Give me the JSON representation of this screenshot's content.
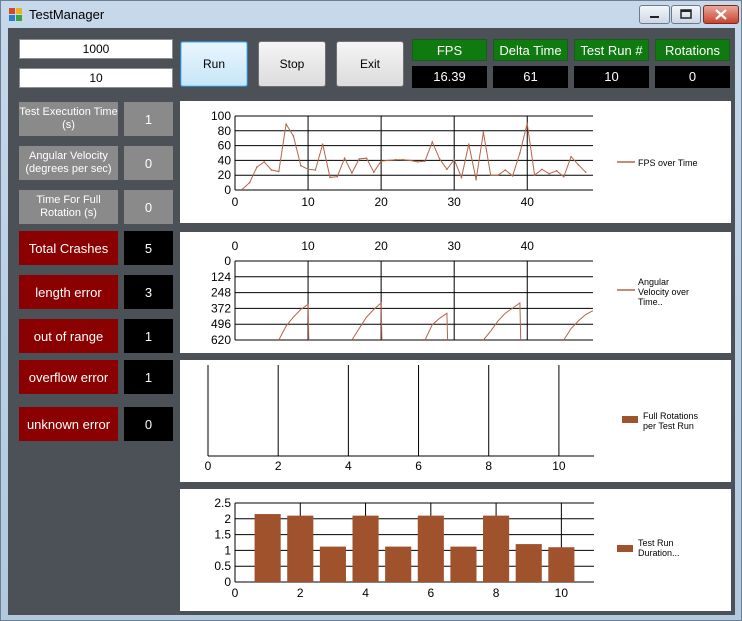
{
  "window": {
    "title": "TestManager"
  },
  "inputs": {
    "top_value": "1000",
    "bottom_value": "10"
  },
  "buttons": {
    "run": "Run",
    "stop": "Stop",
    "exit": "Exit"
  },
  "stats": [
    {
      "label": "FPS",
      "value": "16.39"
    },
    {
      "label": "Delta Time",
      "value": "61"
    },
    {
      "label": "Test Run #",
      "value": "10"
    },
    {
      "label": "Rotations",
      "value": "0"
    }
  ],
  "info": [
    {
      "label": "Test Execution Time (s)",
      "value": "1"
    },
    {
      "label": "Angular Velocity (degrees per sec)",
      "value": "0"
    },
    {
      "label": "Time For Full Rotation (s)",
      "value": "0"
    }
  ],
  "errors": [
    {
      "label": "Total Crashes",
      "value": "5"
    },
    {
      "label": "length error",
      "value": "3"
    },
    {
      "label": "out of range",
      "value": "1"
    },
    {
      "label": "overflow error",
      "value": "1"
    },
    {
      "label": "unknown error",
      "value": "0"
    }
  ],
  "colors": {
    "series_line": "#b5654a",
    "bar": "#a0522d",
    "stat_green": "#0f7a0f",
    "error_red": "#8b0000"
  },
  "chart_data": [
    {
      "type": "line",
      "xlim": [
        0,
        49
      ],
      "ylim": [
        0,
        100
      ],
      "xticks": [
        0,
        10,
        20,
        30,
        40
      ],
      "yticks": [
        0,
        20,
        40,
        60,
        80,
        100
      ],
      "series": [
        {
          "name": "FPS over Time",
          "x": [
            1,
            2,
            3,
            4,
            5,
            6,
            7,
            8,
            9,
            10,
            11,
            12,
            13,
            14,
            15,
            16,
            17,
            18,
            19,
            20,
            21,
            22,
            23,
            24,
            25,
            26,
            27,
            28,
            29,
            30,
            31,
            32,
            33,
            34,
            35,
            36,
            37,
            38,
            39,
            40,
            41,
            42,
            43,
            44,
            45,
            46,
            47,
            48
          ],
          "y": [
            1,
            10,
            31,
            38,
            27,
            25,
            89,
            73,
            33,
            28,
            27,
            62,
            17,
            18,
            43,
            23,
            42,
            43,
            24,
            39,
            40,
            41,
            41,
            40,
            38,
            39,
            65,
            42,
            28,
            41,
            17,
            62,
            14,
            78,
            20,
            20,
            27,
            19,
            50,
            90,
            20,
            28,
            22,
            26,
            18,
            45,
            34,
            24
          ]
        }
      ]
    },
    {
      "type": "line",
      "xlim": [
        0,
        49
      ],
      "ylim": [
        620,
        0
      ],
      "xticks": [
        0,
        10,
        20,
        30,
        40
      ],
      "yticks": [
        0,
        124,
        248,
        372,
        496,
        620
      ],
      "series": [
        {
          "name": "Angular Velocity over Time..",
          "segments": [
            {
              "x": [
                6,
                7,
                8,
                9,
                10,
                10.1
              ],
              "y": [
                620,
                510,
                440,
                380,
                340,
                620
              ]
            },
            {
              "x": [
                16,
                17,
                18,
                19,
                20,
                20.1
              ],
              "y": [
                620,
                530,
                440,
                380,
                330,
                620
              ]
            },
            {
              "x": [
                26,
                27,
                28,
                29,
                29.1
              ],
              "y": [
                620,
                500,
                450,
                410,
                620
              ]
            },
            {
              "x": [
                34,
                35,
                36,
                37,
                38,
                39,
                39.1
              ],
              "y": [
                620,
                550,
                470,
                410,
                370,
                330,
                620
              ]
            },
            {
              "x": [
                45,
                46,
                47,
                48,
                49
              ],
              "y": [
                620,
                530,
                470,
                420,
                390
              ]
            }
          ]
        }
      ]
    },
    {
      "type": "bar",
      "xlim": [
        0,
        11
      ],
      "xticks": [
        0,
        2,
        4,
        6,
        8,
        10
      ],
      "series": [
        {
          "name": "Full Rotations per Test Run",
          "x": [],
          "values": []
        }
      ]
    },
    {
      "type": "bar",
      "xlim": [
        0,
        11
      ],
      "ylim": [
        0,
        2.5
      ],
      "xticks": [
        0,
        2,
        4,
        6,
        8,
        10
      ],
      "yticks": [
        0,
        0.5,
        1,
        1.5,
        2,
        2.5
      ],
      "series": [
        {
          "name": "Test Run Duration...",
          "x": [
            1,
            2,
            3,
            4,
            5,
            6,
            7,
            8,
            9,
            10
          ],
          "values": [
            2.15,
            2.1,
            1.12,
            2.1,
            1.12,
            2.1,
            1.12,
            2.1,
            1.2,
            1.1
          ]
        }
      ]
    }
  ]
}
